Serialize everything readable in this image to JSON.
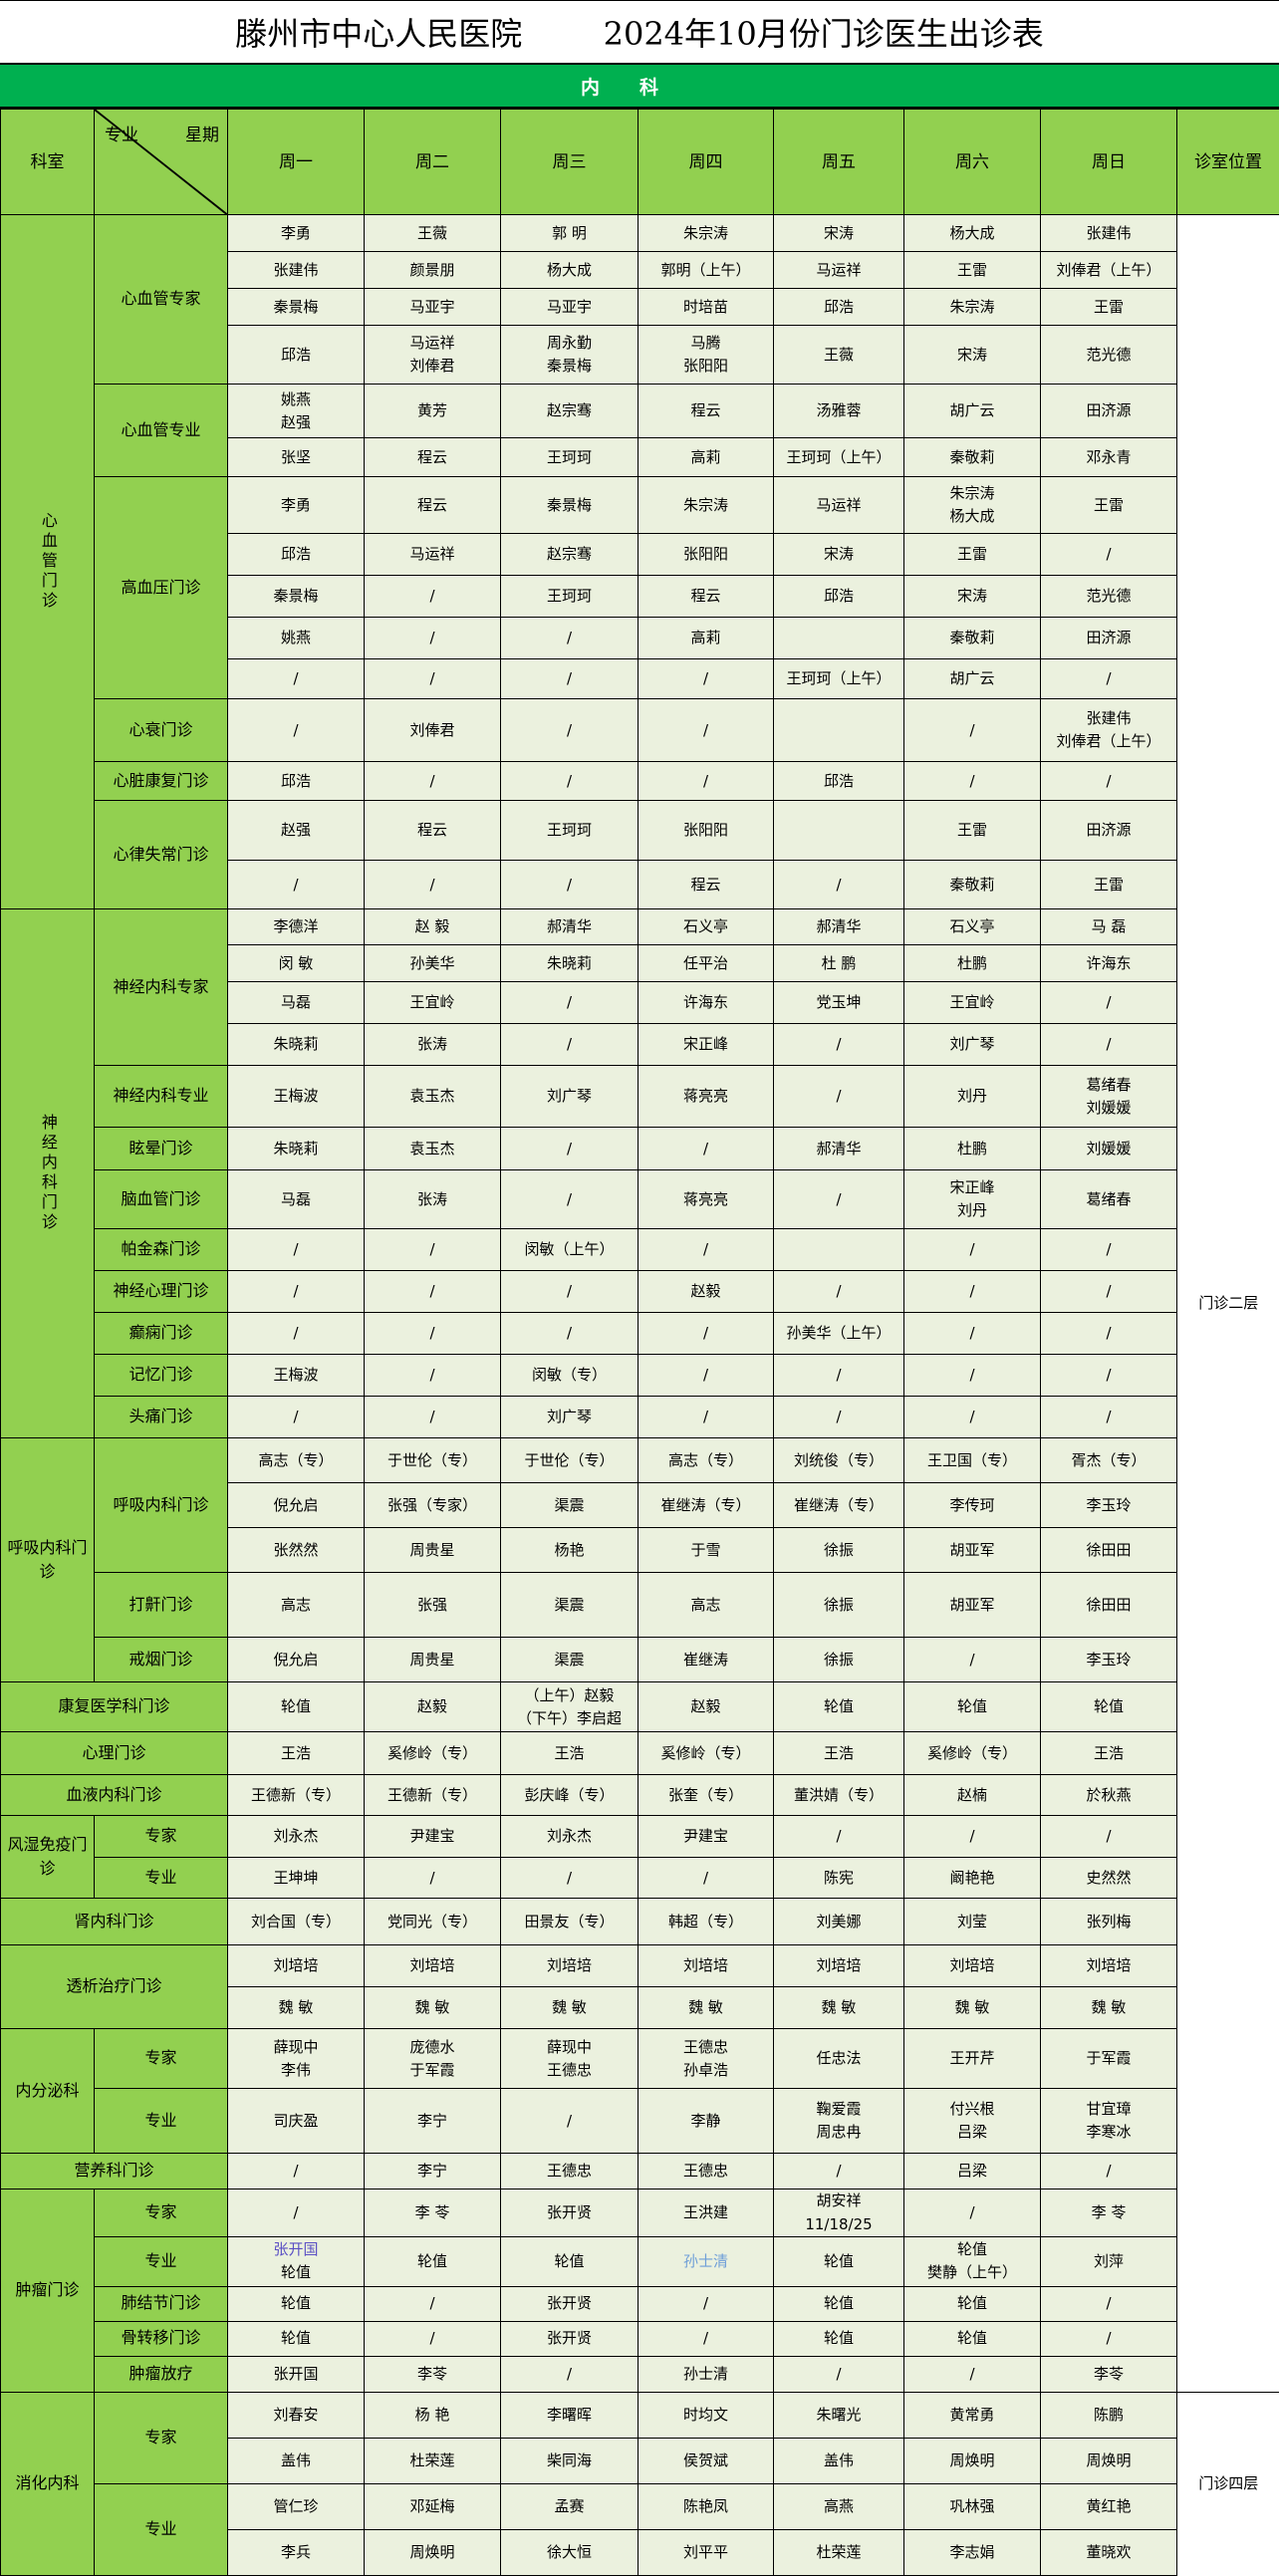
{
  "title": "滕州市中心人民医院        2024年10月份门诊医生出诊表",
  "band": "内科",
  "header": {
    "dept": "科室",
    "spec": "专业",
    "week": "星期",
    "days": [
      "周一",
      "周二",
      "周三",
      "周四",
      "周五",
      "周六",
      "周日"
    ],
    "location": "诊室位置"
  },
  "colors": {
    "label_bg": "#92d050",
    "band_bg": "#00b050",
    "cell_bg": "#ebf1de"
  },
  "locations": [
    "门诊二层",
    "门诊四层"
  ],
  "sections": [
    {
      "dept": "心血管门诊",
      "vertical": true,
      "subs": [
        {
          "name": "心血管专家",
          "rows": [
            [
              "李勇",
              "王薇",
              "郭 明",
              "朱宗涛",
              "宋涛",
              "杨大成",
              "张建伟"
            ],
            [
              "张建伟",
              "颜景朋",
              "杨大成",
              "郭明（上午）",
              "马运祥",
              "王雷",
              "刘俸君（上午）"
            ],
            [
              "秦景梅",
              "马亚宇",
              "马亚宇",
              "时培苗",
              "邱浩",
              "朱宗涛",
              "王雷"
            ],
            [
              "邱浩",
              "马运祥\n刘俸君",
              "周永勤\n秦景梅",
              "马腾\n张阳阳",
              "王薇",
              "宋涛",
              "范光德"
            ]
          ]
        },
        {
          "name": "心血管专业",
          "rows": [
            [
              "姚燕\n赵强",
              "黄芳",
              "赵宗骞",
              "程云",
              "汤雅蓉",
              "胡广云",
              "田济源"
            ],
            [
              "张坚",
              "程云",
              "王珂珂",
              "高莉",
              "王珂珂（上午）",
              "秦敬莉",
              "邓永青"
            ]
          ]
        },
        {
          "name": "高血压门诊",
          "rows": [
            [
              "李勇",
              "程云",
              "秦景梅",
              "朱宗涛",
              "马运祥",
              "朱宗涛\n杨大成",
              "王雷"
            ],
            [
              "邱浩",
              "马运祥",
              "赵宗骞",
              "张阳阳",
              "宋涛",
              "王雷",
              "/"
            ],
            [
              "秦景梅",
              "/",
              "王珂珂",
              "程云",
              "邱浩",
              "宋涛",
              "范光德"
            ],
            [
              "姚燕",
              "/",
              "/",
              "高莉",
              "",
              "秦敬莉",
              "田济源"
            ],
            [
              "/",
              "/",
              "/",
              "/",
              "王珂珂（上午）",
              "胡广云",
              "/"
            ]
          ]
        },
        {
          "name": "心衰门诊",
          "rows": [
            [
              "/",
              "刘俸君",
              "/",
              "/",
              "",
              "/",
              "张建伟\n刘俸君（上午）"
            ]
          ]
        },
        {
          "name": "心脏康复门诊",
          "rows": [
            [
              "邱浩",
              "/",
              "/",
              "/",
              "邱浩",
              "/",
              "/"
            ]
          ]
        },
        {
          "name": "心律失常门诊",
          "rows": [
            [
              "赵强",
              "程云",
              "王珂珂",
              "张阳阳",
              "",
              "王雷",
              "田济源"
            ],
            [
              "/",
              "/",
              "/",
              "程云",
              "/",
              "秦敬莉",
              "王雷"
            ]
          ]
        }
      ]
    },
    {
      "dept": "神经内科门诊",
      "vertical": true,
      "subs": [
        {
          "name": "神经内科专家",
          "rows": [
            [
              "李德洋",
              "赵 毅",
              "郝清华",
              "石义亭",
              "郝清华",
              "石义亭",
              "马 磊"
            ],
            [
              "闵 敏",
              "孙美华",
              "朱晓莉",
              "任平治",
              "杜 鹏",
              "杜鹏",
              "许海东"
            ],
            [
              "马磊",
              "王宜岭",
              "/",
              "许海东",
              "党玉坤",
              "王宜岭",
              "/"
            ],
            [
              "朱晓莉",
              "张涛",
              "/",
              "宋正峰",
              "/",
              "刘广琴",
              "/"
            ]
          ]
        },
        {
          "name": "神经内科专业",
          "rows": [
            [
              "王梅波",
              "袁玉杰",
              "刘广琴",
              "蒋亮亮",
              "/",
              "刘丹",
              "葛绪春\n刘媛媛"
            ]
          ]
        },
        {
          "name": "眩晕门诊",
          "rows": [
            [
              "朱晓莉",
              "袁玉杰",
              "/",
              "/",
              "郝清华",
              "杜鹏",
              "刘媛媛"
            ]
          ]
        },
        {
          "name": "脑血管门诊",
          "rows": [
            [
              "马磊",
              "张涛",
              "/",
              "蒋亮亮",
              "/",
              "宋正峰\n刘丹",
              "葛绪春"
            ]
          ]
        },
        {
          "name": "帕金森门诊",
          "rows": [
            [
              "/",
              "/",
              "闵敏（上午）",
              "/",
              "",
              "/",
              "/"
            ]
          ]
        },
        {
          "name": "神经心理门诊",
          "rows": [
            [
              "/",
              "/",
              "/",
              "赵毅",
              "/",
              "/",
              "/"
            ]
          ]
        },
        {
          "name": "癫痫门诊",
          "rows": [
            [
              "/",
              "/",
              "/",
              "/",
              "孙美华（上午）",
              "/",
              "/"
            ]
          ]
        },
        {
          "name": "记忆门诊",
          "rows": [
            [
              "王梅波",
              "/",
              "闵敏（专）",
              "/",
              "/",
              "/",
              "/"
            ]
          ]
        },
        {
          "name": "头痛门诊",
          "rows": [
            [
              "/",
              "/",
              "刘广琴",
              "/",
              "/",
              "/",
              "/"
            ]
          ]
        }
      ]
    },
    {
      "dept": "呼吸内科门诊",
      "subs": [
        {
          "name": "呼吸内科门诊",
          "rows": [
            [
              "高志（专）",
              "于世伦（专）",
              "于世伦（专）",
              "高志（专）",
              "刘统俊（专）",
              "王卫国（专）",
              "胥杰（专）"
            ],
            [
              "倪允启",
              "张强（专家）",
              "渠震",
              "崔继涛（专）",
              "崔继涛（专）",
              "李传珂",
              "李玉玲"
            ],
            [
              "张然然",
              "周贵星",
              "杨艳",
              "于雪",
              "徐振",
              "胡亚军",
              "徐田田"
            ]
          ]
        },
        {
          "name": "打鼾门诊",
          "rows": [
            [
              "高志",
              "张强",
              "渠震",
              "高志",
              "徐振",
              "胡亚军",
              "徐田田"
            ]
          ]
        },
        {
          "name": "戒烟门诊",
          "rows": [
            [
              "倪允启",
              "周贵星",
              "渠震",
              "崔继涛",
              "徐振",
              "/",
              "李玉玲"
            ]
          ]
        }
      ]
    },
    {
      "dept": "康复医学科门诊",
      "merged": true,
      "subs": [
        {
          "rows": [
            [
              "轮值",
              "赵毅",
              "（上午）赵毅\n（下午）李启超",
              "赵毅",
              "轮值",
              "轮值",
              "轮值"
            ]
          ]
        }
      ]
    },
    {
      "dept": "心理门诊",
      "merged": true,
      "subs": [
        {
          "rows": [
            [
              "王浩",
              "奚修岭（专）",
              "王浩",
              "奚修岭（专）",
              "王浩",
              "奚修岭（专）",
              "王浩"
            ]
          ]
        }
      ]
    },
    {
      "dept": "血液内科门诊",
      "merged": true,
      "subs": [
        {
          "rows": [
            [
              "王德新（专）",
              "王德新（专）",
              "彭庆峰（专）",
              "张奎（专）",
              "董洪婧（专）",
              "赵楠",
              "於秋燕"
            ]
          ]
        }
      ]
    },
    {
      "dept": "风湿免疫门诊",
      "subs": [
        {
          "name": "专家",
          "rows": [
            [
              "刘永杰",
              "尹建宝",
              "刘永杰",
              "尹建宝",
              "/",
              "/",
              "/"
            ]
          ]
        },
        {
          "name": "专业",
          "rows": [
            [
              "王坤坤",
              "/",
              "/",
              "/",
              "陈宪",
              "阚艳艳",
              "史然然"
            ]
          ]
        }
      ]
    },
    {
      "dept": "肾内科门诊",
      "merged": true,
      "subs": [
        {
          "rows": [
            [
              "刘合国（专）",
              "党同光（专）",
              "田景友（专）",
              "韩超（专）",
              "刘美娜",
              "刘莹",
              "张列梅"
            ]
          ]
        }
      ]
    },
    {
      "dept": "透析治疗门诊",
      "merged": true,
      "subs": [
        {
          "rows": [
            [
              "刘培培",
              "刘培培",
              "刘培培",
              "刘培培",
              "刘培培",
              "刘培培",
              "刘培培"
            ],
            [
              "魏 敏",
              "魏 敏",
              "魏 敏",
              "魏 敏",
              "魏 敏",
              "魏 敏",
              "魏 敏"
            ]
          ]
        }
      ]
    },
    {
      "dept": "内分泌科",
      "subs": [
        {
          "name": "专家",
          "rows": [
            [
              "薛现中\n李伟",
              "庞德水\n于军霞",
              "薛现中\n王德忠",
              "王德忠\n孙卓浩",
              "任忠法",
              "王开芹",
              "于军霞"
            ]
          ]
        },
        {
          "name": "专业",
          "rows": [
            [
              "司庆盈",
              "李宁",
              "/",
              "李静",
              "鞠爱霞\n周忠冉",
              "付兴根\n吕梁",
              "甘宜璋\n李寒冰"
            ]
          ]
        }
      ]
    },
    {
      "dept": "营养科门诊",
      "merged": true,
      "subs": [
        {
          "rows": [
            [
              "/",
              "李宁",
              "王德忠",
              "王德忠",
              "/",
              "吕梁",
              "/"
            ]
          ]
        }
      ]
    },
    {
      "dept": "肿瘤门诊",
      "subs": [
        {
          "name": "专家",
          "rows": [
            [
              "/",
              "李 苓",
              "张开贤",
              "王洪建",
              "胡安祥\n11/18/25",
              "/",
              "李 苓"
            ]
          ]
        },
        {
          "name": "专业",
          "rows": [
            [
              {
                "lines": [
                  {
                    "text": "张开国",
                    "color": "#5a4fc4"
                  },
                  {
                    "text": "轮值"
                  }
                ]
              },
              "轮值",
              "轮值",
              {
                "lines": [
                  {
                    "text": "孙士清",
                    "color": "#6f9fd8"
                  }
                ]
              },
              "轮值",
              "轮值\n樊静（上午）",
              "刘萍"
            ]
          ]
        },
        {
          "name": "肺结节门诊",
          "rows": [
            [
              "轮值",
              "/",
              "张开贤",
              "/",
              "轮值",
              "轮值",
              "/"
            ]
          ]
        },
        {
          "name": "骨转移门诊",
          "rows": [
            [
              "轮值",
              "/",
              "张开贤",
              "/",
              "轮值",
              "轮值",
              "/"
            ]
          ]
        },
        {
          "name": "肿瘤放疗",
          "rows": [
            [
              "张开国",
              "李苓",
              "/",
              "孙士清",
              "/",
              "/",
              "李苓"
            ]
          ]
        }
      ]
    },
    {
      "dept": "消化内科",
      "subs": [
        {
          "name": "专家",
          "rows": [
            [
              "刘春安",
              "杨 艳",
              "李曙晖",
              "时均文",
              "朱曙光",
              "黄常勇",
              "陈鹏"
            ],
            [
              "盖伟",
              "杜荣莲",
              "柴同海",
              "侯贺斌",
              "盖伟",
              "周焕明",
              "周焕明"
            ]
          ]
        },
        {
          "name": "专业",
          "rows": [
            [
              "管仁珍",
              "邓延梅",
              "孟赛",
              "陈艳凤",
              "高燕",
              "巩林强",
              "黄红艳"
            ],
            [
              "李兵",
              "周焕明",
              "徐大恒",
              "刘平平",
              "杜荣莲",
              "李志娟",
              "董晓欢"
            ]
          ]
        }
      ]
    }
  ]
}
